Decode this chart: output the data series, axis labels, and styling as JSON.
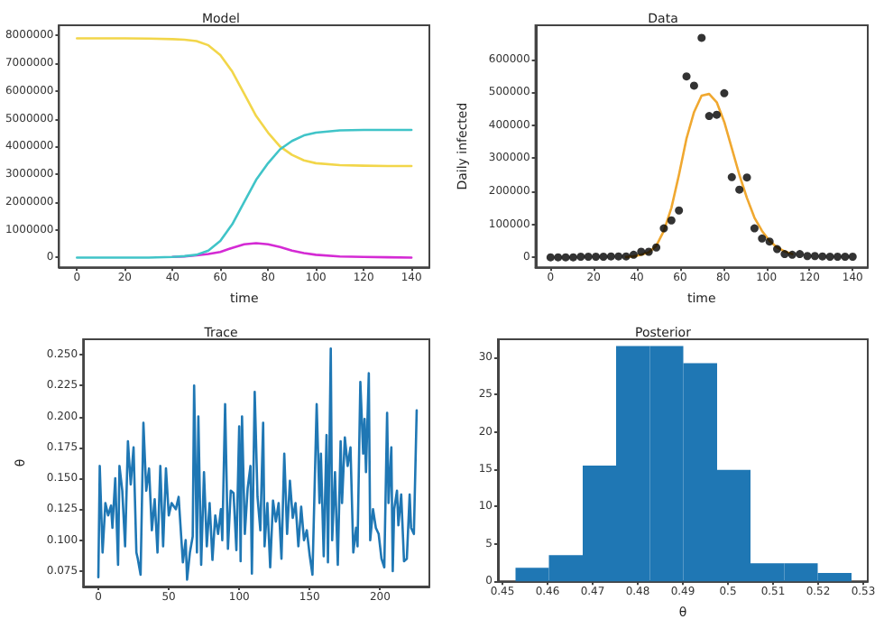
{
  "chart_data": [
    {
      "type": "line",
      "title": "Model",
      "xlabel": "time",
      "x": [
        0,
        10,
        20,
        30,
        40,
        45,
        50,
        55,
        60,
        65,
        70,
        75,
        80,
        85,
        90,
        95,
        100,
        110,
        120,
        130,
        140
      ],
      "xlim": [
        -7.5,
        147.5
      ],
      "xticks": [
        0,
        20,
        40,
        60,
        80,
        100,
        120,
        140
      ],
      "ylim": [
        -350000,
        8370000
      ],
      "yticks": [
        0,
        1000000,
        2000000,
        3000000,
        4000000,
        5000000,
        6000000,
        7000000,
        8000000
      ],
      "grid": false,
      "marker": "none",
      "line_style": "solid",
      "series": [
        {
          "color": "#f2d64a",
          "values": [
            7900000,
            7900000,
            7900000,
            7890000,
            7870000,
            7850000,
            7800000,
            7650000,
            7300000,
            6700000,
            5900000,
            5100000,
            4500000,
            4000000,
            3700000,
            3500000,
            3400000,
            3330000,
            3310000,
            3300000,
            3300000
          ]
        },
        {
          "color": "#d42ad4",
          "values": [
            null,
            null,
            null,
            null,
            20000,
            40000,
            80000,
            130000,
            200000,
            350000,
            480000,
            520000,
            480000,
            380000,
            250000,
            160000,
            100000,
            40000,
            20000,
            10000,
            0
          ]
        },
        {
          "color": "#40c4c8",
          "values": [
            0,
            0,
            0,
            0,
            20000,
            50000,
            100000,
            250000,
            600000,
            1200000,
            2000000,
            2800000,
            3400000,
            3900000,
            4200000,
            4400000,
            4500000,
            4580000,
            4600000,
            4600000,
            4600000
          ]
        }
      ]
    },
    {
      "type": "scatter",
      "title": "Data",
      "xlabel": "time",
      "ylabel": "Daily infected",
      "x": [
        0,
        3.5,
        7,
        10.5,
        14,
        17.5,
        21,
        24.5,
        28,
        31.5,
        35,
        38.5,
        42,
        45.5,
        49,
        52.5,
        56,
        59.5,
        63,
        66.5,
        70,
        73.5,
        77,
        80.5,
        84,
        87.5,
        91,
        94.5,
        98,
        101.5,
        105,
        108.5,
        112,
        115.5,
        119,
        122.5,
        126,
        129.5,
        133,
        136.5,
        140
      ],
      "xlim": [
        -7,
        147
      ],
      "xticks": [
        0,
        20,
        40,
        60,
        80,
        100,
        120,
        140
      ],
      "ylim": [
        -30000,
        703000
      ],
      "yticks": [
        0,
        100000,
        200000,
        300000,
        400000,
        500000,
        600000
      ],
      "grid": false,
      "series": [
        {
          "type": "line",
          "marker": "none",
          "color": "#f0a830",
          "values": [
            null,
            null,
            null,
            null,
            null,
            null,
            null,
            null,
            null,
            null,
            1000,
            3000,
            8000,
            15000,
            35000,
            80000,
            150000,
            250000,
            360000,
            440000,
            490000,
            495000,
            470000,
            410000,
            330000,
            250000,
            180000,
            120000,
            80000,
            50000,
            30000,
            18000,
            10000,
            null,
            null,
            null,
            null,
            null,
            null,
            null,
            null
          ]
        },
        {
          "type": "scatter",
          "marker": "circle",
          "color": "#000000",
          "values": [
            0,
            0,
            0,
            0,
            2000,
            2000,
            2000,
            2000,
            3000,
            3000,
            3000,
            8000,
            17000,
            17000,
            30000,
            88000,
            112000,
            142000,
            548000,
            520000,
            665000,
            428000,
            432000,
            497000,
            243000,
            205000,
            242000,
            88000,
            57000,
            48000,
            25000,
            10000,
            8000,
            10000,
            4000,
            4000,
            3000,
            2000,
            2000,
            2000,
            2000
          ]
        }
      ]
    },
    {
      "type": "line",
      "title": "Trace",
      "ylabel": "θ",
      "xlim": [
        -10.8,
        235
      ],
      "xticks": [
        0,
        50,
        100,
        150,
        200
      ],
      "ylim": [
        0.0625,
        0.2625
      ],
      "yticks": [
        {
          "value": 0.075,
          "label": "0.075"
        },
        {
          "value": 0.1,
          "label": "0.100"
        },
        {
          "value": 0.125,
          "label": "0.125"
        },
        {
          "value": 0.15,
          "label": "0.150"
        },
        {
          "value": 0.175,
          "label": "0.175"
        },
        {
          "value": 0.2,
          "label": "0.200"
        },
        {
          "value": 0.225,
          "label": "0.225"
        },
        {
          "value": 0.25,
          "label": "0.250"
        }
      ],
      "grid": false,
      "marker": "none",
      "line_style": "solid",
      "series": [
        {
          "color": "#1f77b4",
          "x": [
            0,
            1,
            3,
            5,
            7,
            9,
            10,
            12,
            14,
            15,
            17,
            19,
            21,
            23,
            25,
            27,
            28,
            30,
            32,
            34,
            36,
            38,
            40,
            42,
            44,
            46,
            48,
            50,
            52,
            55,
            57,
            60,
            62,
            63,
            65,
            67,
            68,
            70,
            71,
            73,
            75,
            77,
            79,
            81,
            83,
            85,
            87,
            88,
            90,
            92,
            94,
            96,
            98,
            100,
            101,
            102,
            104,
            106,
            108,
            109,
            111,
            113,
            115,
            117,
            118,
            120,
            122,
            124,
            126,
            128,
            130,
            132,
            134,
            136,
            138,
            140,
            142,
            144,
            146,
            148,
            150,
            152,
            155,
            157,
            158,
            160,
            162,
            163,
            165,
            166,
            168,
            170,
            172,
            173,
            175,
            177,
            179,
            181,
            183,
            184,
            186,
            188,
            189,
            190,
            192,
            193,
            195,
            197,
            199,
            201,
            203,
            205,
            206,
            208,
            209,
            210,
            212,
            213,
            215,
            217,
            219,
            221,
            222,
            224,
            226
          ],
          "values": [
            0.07,
            0.16,
            0.09,
            0.13,
            0.12,
            0.128,
            0.11,
            0.15,
            0.08,
            0.16,
            0.14,
            0.095,
            0.18,
            0.145,
            0.175,
            0.09,
            0.085,
            0.072,
            0.195,
            0.14,
            0.158,
            0.108,
            0.133,
            0.09,
            0.16,
            0.095,
            0.158,
            0.12,
            0.13,
            0.125,
            0.135,
            0.082,
            0.1,
            0.068,
            0.09,
            0.103,
            0.225,
            0.09,
            0.2,
            0.08,
            0.155,
            0.095,
            0.13,
            0.084,
            0.12,
            0.105,
            0.125,
            0.1,
            0.21,
            0.093,
            0.14,
            0.138,
            0.092,
            0.192,
            0.083,
            0.2,
            0.105,
            0.142,
            0.16,
            0.073,
            0.22,
            0.135,
            0.108,
            0.195,
            0.095,
            0.13,
            0.078,
            0.132,
            0.115,
            0.13,
            0.085,
            0.17,
            0.105,
            0.148,
            0.118,
            0.13,
            0.095,
            0.127,
            0.1,
            0.108,
            0.088,
            0.072,
            0.21,
            0.13,
            0.17,
            0.087,
            0.185,
            0.082,
            0.255,
            0.1,
            0.155,
            0.08,
            0.18,
            0.13,
            0.183,
            0.16,
            0.175,
            0.09,
            0.11,
            0.095,
            0.228,
            0.17,
            0.198,
            0.155,
            0.235,
            0.1,
            0.125,
            0.11,
            0.105,
            0.085,
            0.078,
            0.203,
            0.13,
            0.175,
            0.075,
            0.125,
            0.14,
            0.112,
            0.137,
            0.083,
            0.085,
            0.137,
            0.11,
            0.105,
            0.205
          ]
        }
      ]
    },
    {
      "type": "histogram",
      "title": "Posterior",
      "xlabel": "θ",
      "bins": [
        0.4529,
        0.4603,
        0.4678,
        0.4752,
        0.4827,
        0.4901,
        0.4976,
        0.505,
        0.5125,
        0.5199,
        0.5274
      ],
      "values": [
        1.8,
        3.5,
        15.5,
        31.5,
        31.5,
        29.2,
        14.9,
        2.4,
        2.4,
        1.1
      ],
      "color": "#1f77b4",
      "xlim": [
        0.449,
        0.531
      ],
      "xticks": [
        0.45,
        0.46,
        0.47,
        0.48,
        0.49,
        0.5,
        0.51,
        0.52,
        0.53
      ],
      "ylim": [
        0,
        32.4
      ],
      "yticks": [
        0,
        5,
        10,
        15,
        20,
        25,
        30
      ],
      "grid": false
    }
  ]
}
